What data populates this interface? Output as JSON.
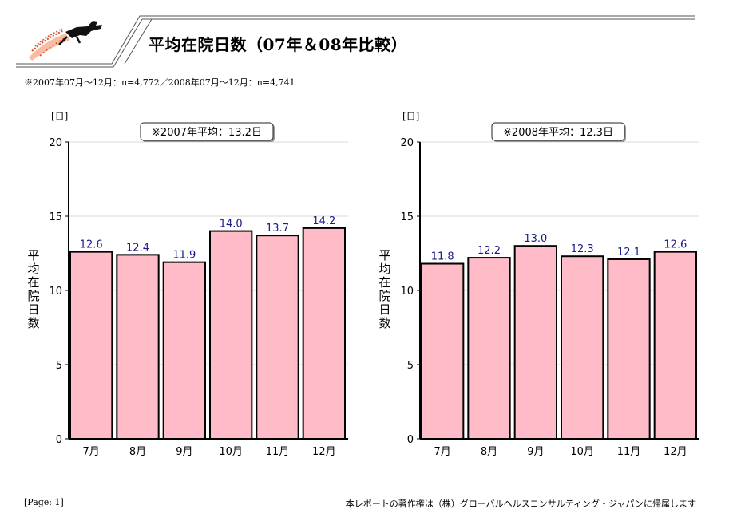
{
  "header": {
    "title": "平均在院日数（07年＆08年比較）",
    "subtitle": "※2007年07月～12月：n=4,772／2008年07月～12月：n=4,741"
  },
  "footer": {
    "page": "[Page: 1]",
    "copyright": "本レポートの著作権は（株）グローバルヘルスコンサルティング・ジャパンに帰属します"
  },
  "colors": {
    "bar": "#ffbcc8",
    "value_label": "#1a1a8c",
    "grid": "#d8d8d8"
  },
  "chart_data": [
    {
      "type": "bar",
      "categories": [
        "7月",
        "8月",
        "9月",
        "10月",
        "11月",
        "12月"
      ],
      "values": [
        12.6,
        12.4,
        11.9,
        14.0,
        13.7,
        14.2
      ],
      "value_labels": [
        "12.6",
        "12.4",
        "11.9",
        "14.0",
        "13.7",
        "14.2"
      ],
      "ylabel": "平均在院日数",
      "unit": "[日]",
      "annotation": "※2007年平均：13.2日",
      "ylim": [
        0,
        20
      ],
      "yticks": [
        0,
        5,
        10,
        15,
        20
      ],
      "grid": true
    },
    {
      "type": "bar",
      "categories": [
        "7月",
        "8月",
        "9月",
        "10月",
        "11月",
        "12月"
      ],
      "values": [
        11.8,
        12.2,
        13.0,
        12.3,
        12.1,
        12.6
      ],
      "value_labels": [
        "11.8",
        "12.2",
        "13.0",
        "12.3",
        "12.1",
        "12.6"
      ],
      "ylabel": "平均在院日数",
      "unit": "[日]",
      "annotation": "※2008年平均：12.3日",
      "ylim": [
        0,
        20
      ],
      "yticks": [
        0,
        5,
        10,
        15,
        20
      ],
      "grid": true
    }
  ]
}
